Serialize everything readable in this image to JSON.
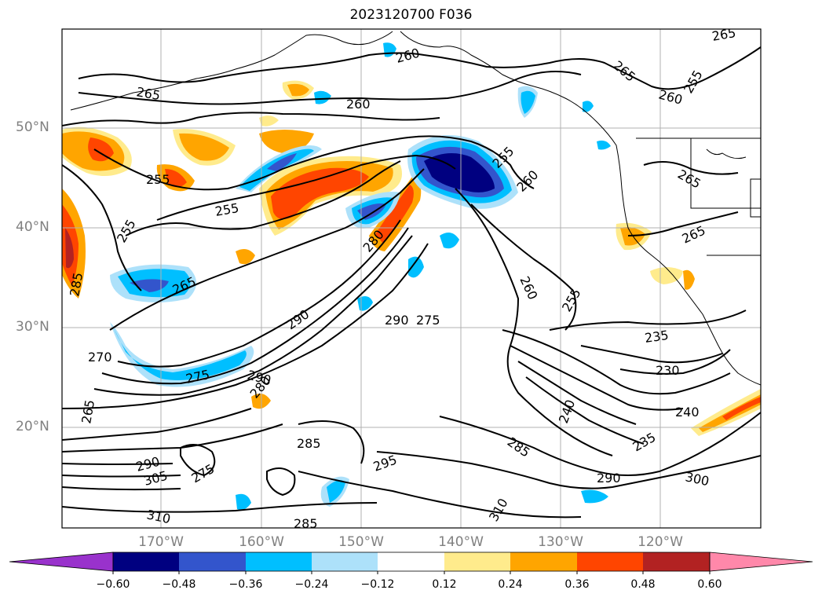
{
  "title": "2023120700 F036",
  "lat_labels": [
    "50°N",
    "40°N",
    "30°N",
    "20°N"
  ],
  "lon_labels": [
    "170°W",
    "160°W",
    "150°W",
    "140°W",
    "130°W",
    "120°W"
  ],
  "contour_labels": [
    {
      "text": "260",
      "id": "c260a"
    },
    {
      "text": "265",
      "id": "c265a"
    },
    {
      "text": "260",
      "id": "c260b"
    },
    {
      "text": "265",
      "id": "c265b"
    },
    {
      "text": "265",
      "id": "c265c"
    },
    {
      "text": "260",
      "id": "c260c"
    },
    {
      "text": "255",
      "id": "c255a"
    },
    {
      "text": "255",
      "id": "c255b"
    },
    {
      "text": "260",
      "id": "c260d"
    },
    {
      "text": "255",
      "id": "c255c"
    },
    {
      "text": "255",
      "id": "c255d"
    },
    {
      "text": "265",
      "id": "c265d"
    },
    {
      "text": "265",
      "id": "c265e"
    },
    {
      "text": "280",
      "id": "c280a"
    },
    {
      "text": "260",
      "id": "c260e"
    },
    {
      "text": "255",
      "id": "c255e"
    },
    {
      "text": "265",
      "id": "c265f"
    },
    {
      "text": "270",
      "id": "c270a"
    },
    {
      "text": "290",
      "id": "c290a"
    },
    {
      "text": "290",
      "id": "c290b"
    },
    {
      "text": "275",
      "id": "c275a"
    },
    {
      "text": "275",
      "id": "c275b"
    },
    {
      "text": "290",
      "id": "c290c"
    },
    {
      "text": "280",
      "id": "c280b"
    },
    {
      "text": "235",
      "id": "c235a"
    },
    {
      "text": "230",
      "id": "c230a"
    },
    {
      "text": "240",
      "id": "c240a"
    },
    {
      "text": "240",
      "id": "c240b"
    },
    {
      "text": "235",
      "id": "c235b"
    },
    {
      "text": "285",
      "id": "c285a"
    },
    {
      "text": "285",
      "id": "c285b"
    },
    {
      "text": "290",
      "id": "c290d"
    },
    {
      "text": "300",
      "id": "c300a"
    },
    {
      "text": "295",
      "id": "c295a"
    },
    {
      "text": "310",
      "id": "c310a"
    },
    {
      "text": "310",
      "id": "c310b"
    },
    {
      "text": "285",
      "id": "c285c"
    },
    {
      "text": "265",
      "id": "c265g"
    },
    {
      "text": "285",
      "id": "c285d"
    },
    {
      "text": "255",
      "id": "c255f"
    },
    {
      "text": "290",
      "id": "c290e"
    },
    {
      "text": "305",
      "id": "c305a"
    },
    {
      "text": "275",
      "id": "c275c"
    }
  ],
  "colorbar": {
    "ticks": [
      "−0.60",
      "−0.48",
      "−0.36",
      "−0.24",
      "−0.12",
      "0.12",
      "0.24",
      "0.36",
      "0.48",
      "0.60"
    ],
    "levels": [
      -0.72,
      -0.6,
      -0.48,
      -0.36,
      -0.24,
      -0.12,
      0.12,
      0.24,
      0.36,
      0.48,
      0.6,
      0.72
    ],
    "colors": [
      "#9932CC",
      "#000080",
      "#3355CC",
      "#00BFFF",
      "#ADE1FA",
      "#FFFFFF",
      "#FFEB8C",
      "#FFA500",
      "#FF4500",
      "#B22222",
      "#FF88AA"
    ],
    "extend": "both"
  },
  "fill_colors": {
    "dark_blue": "#000080",
    "mid_blue": "#3355CC",
    "sky_blue": "#00BFFF",
    "pale_blue": "#ADE1FA",
    "pale_yellow": "#FFEB8C",
    "orange": "#FFA500",
    "red_orange": "#FF4500",
    "dark_red": "#B22222",
    "purple": "#9932CC"
  },
  "gridlines": true
}
